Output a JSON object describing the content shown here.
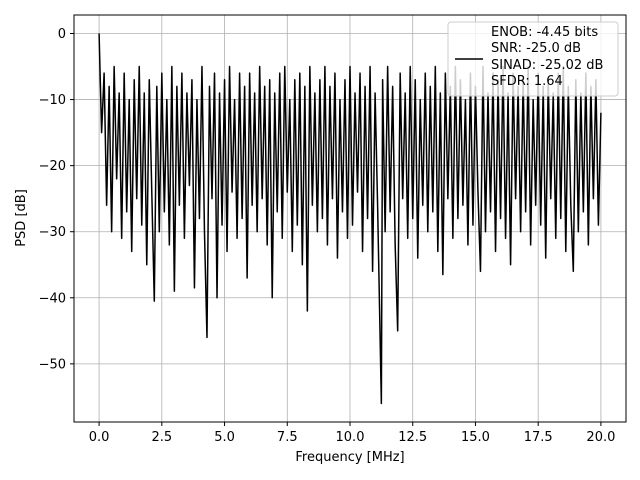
{
  "chart_data": {
    "type": "line",
    "xlabel": "Frequency [MHz]",
    "ylabel": "PSD [dB]",
    "x": [
      0,
      0.1,
      0.2,
      0.3,
      0.4,
      0.5,
      0.6,
      0.7,
      0.8,
      0.9,
      1,
      1.1,
      1.2,
      1.3,
      1.4,
      1.5,
      1.6,
      1.7,
      1.8,
      1.9,
      2,
      2.1,
      2.2,
      2.3,
      2.4,
      2.5,
      2.6,
      2.7,
      2.8,
      2.9,
      3,
      3.1,
      3.2,
      3.3,
      3.4,
      3.5,
      3.6,
      3.7,
      3.8,
      3.9,
      4,
      4.1,
      4.2,
      4.3,
      4.4,
      4.5,
      4.6,
      4.7,
      4.8,
      4.9,
      5,
      5.1,
      5.2,
      5.3,
      5.4,
      5.5,
      5.6,
      5.7,
      5.8,
      5.9,
      6,
      6.1,
      6.2,
      6.3,
      6.4,
      6.5,
      6.6,
      6.7,
      6.8,
      6.9,
      7,
      7.1,
      7.2,
      7.3,
      7.4,
      7.5,
      7.6,
      7.7,
      7.8,
      7.9,
      8,
      8.1,
      8.2,
      8.3,
      8.4,
      8.5,
      8.6,
      8.7,
      8.8,
      8.9,
      9,
      9.1,
      9.2,
      9.3,
      9.4,
      9.5,
      9.6,
      9.7,
      9.8,
      9.9,
      10,
      10.1,
      10.2,
      10.3,
      10.4,
      10.5,
      10.6,
      10.7,
      10.8,
      10.9,
      11,
      11.1,
      11.25,
      11.3,
      11.4,
      11.5,
      11.6,
      11.7,
      11.8,
      11.9,
      12,
      12.1,
      12.2,
      12.3,
      12.4,
      12.5,
      12.6,
      12.7,
      12.8,
      12.9,
      13,
      13.1,
      13.2,
      13.3,
      13.4,
      13.5,
      13.6,
      13.7,
      13.8,
      13.9,
      14,
      14.1,
      14.2,
      14.3,
      14.4,
      14.5,
      14.6,
      14.7,
      14.8,
      14.9,
      15,
      15.1,
      15.2,
      15.3,
      15.4,
      15.5,
      15.6,
      15.7,
      15.8,
      15.9,
      16,
      16.1,
      16.2,
      16.3,
      16.4,
      16.5,
      16.6,
      16.7,
      16.8,
      16.9,
      17,
      17.1,
      17.2,
      17.3,
      17.4,
      17.5,
      17.6,
      17.7,
      17.8,
      17.9,
      18,
      18.1,
      18.2,
      18.3,
      18.4,
      18.5,
      18.6,
      18.7,
      18.8,
      18.9,
      19,
      19.1,
      19.2,
      19.3,
      19.4,
      19.5,
      19.6,
      19.7,
      19.8,
      19.9,
      20
    ],
    "series": [
      {
        "name": "ENOB: -4.45 bits\nSNR: -25.0 dB\nSINAD: -25.02 dB\nSFDR: 1.64",
        "color": "#000000",
        "values": [
          0,
          -15,
          -6,
          -26,
          -8,
          -30,
          -5,
          -22,
          -9,
          -31,
          -6,
          -27,
          -10,
          -33,
          -7,
          -25,
          -5,
          -29,
          -9,
          -35,
          -7,
          -24,
          -40.5,
          -8,
          -30,
          -6,
          -27,
          -10,
          -32,
          -5,
          -39,
          -8,
          -26,
          -6,
          -31,
          -9,
          -23,
          -7,
          -38.5,
          -10,
          -28,
          -5,
          -30,
          -46,
          -8,
          -25,
          -6,
          -40,
          -9,
          -29,
          -7,
          -33,
          -5,
          -24,
          -10,
          -31,
          -6,
          -28,
          -8,
          -37,
          -6,
          -26,
          -9,
          -30,
          -5,
          -25,
          -8,
          -32,
          -7,
          -40,
          -9,
          -27,
          -6,
          -31,
          -5,
          -24,
          -10,
          -33,
          -7,
          -29,
          -6,
          -35,
          -8,
          -42,
          -5,
          -26,
          -9,
          -30,
          -7,
          -28,
          -5,
          -32,
          -8,
          -25,
          -6,
          -34,
          -10,
          -27,
          -7,
          -31,
          -5,
          -29,
          -9,
          -24,
          -6,
          -33,
          -8,
          -28,
          -5,
          -36,
          -9,
          -26,
          -56,
          -7,
          -30,
          -5,
          -27,
          -8,
          -32,
          -45,
          -6,
          -25,
          -9,
          -31,
          -5,
          -28,
          -7,
          -34,
          -10,
          -26,
          -6,
          -30,
          -8,
          -27,
          -5,
          -33,
          -9,
          -36.5,
          -6,
          -25,
          -8,
          -31,
          -5,
          -28,
          -7,
          -26,
          -10,
          -32,
          -6,
          -29,
          -8,
          -24,
          -36,
          -5,
          -30,
          -9,
          -27,
          -6,
          -33,
          -7,
          -28,
          -5,
          -31,
          -9,
          -35,
          -6,
          -25,
          -8,
          -30,
          -7,
          -27,
          -5,
          -32,
          -10,
          -26,
          -6,
          -29,
          -8,
          -34,
          -7,
          -25,
          -9,
          -31,
          -6,
          -28,
          -5,
          -33,
          -8,
          -26,
          -36,
          -7,
          -30,
          -9,
          -27,
          -6,
          -32,
          -8,
          -25,
          -7,
          -29,
          -12
        ]
      }
    ],
    "xlim": [
      -1,
      21
    ],
    "ylim": [
      -58.8,
      2.8
    ],
    "xticks": [
      {
        "value": 0,
        "label": "0.0"
      },
      2.5,
      {
        "value": 5,
        "label": "5.0"
      },
      7.5,
      {
        "value": 10,
        "label": "10.0"
      },
      12.5,
      {
        "value": 15,
        "label": "15.0"
      },
      17.5,
      {
        "value": 20,
        "label": "20.0"
      }
    ],
    "yticks": [
      {
        "value": 0,
        "label": "0"
      },
      {
        "value": -10,
        "label": "−10"
      },
      {
        "value": -20,
        "label": "−20"
      },
      {
        "value": -30,
        "label": "−30"
      },
      {
        "value": -40,
        "label": "−40"
      },
      {
        "value": -50,
        "label": "−50"
      }
    ],
    "grid": true,
    "legend": "upper right"
  }
}
